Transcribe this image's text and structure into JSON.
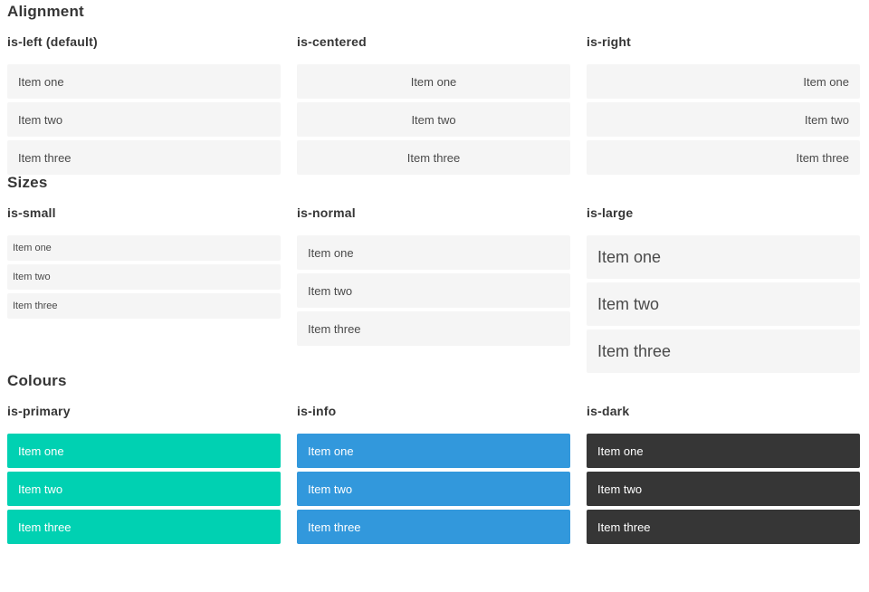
{
  "sections": [
    {
      "title": "Alignment",
      "groups": [
        {
          "label": "is-left (default)",
          "variant": "left",
          "items": [
            "Item one",
            "Item two",
            "Item three"
          ]
        },
        {
          "label": "is-centered",
          "variant": "centered",
          "items": [
            "Item one",
            "Item two",
            "Item three"
          ]
        },
        {
          "label": "is-right",
          "variant": "right",
          "items": [
            "Item one",
            "Item two",
            "Item three"
          ]
        }
      ]
    },
    {
      "title": "Sizes",
      "groups": [
        {
          "label": "is-small",
          "variant": "small",
          "items": [
            "Item one",
            "Item two",
            "Item three"
          ]
        },
        {
          "label": "is-normal",
          "variant": "normal",
          "items": [
            "Item one",
            "Item two",
            "Item three"
          ]
        },
        {
          "label": "is-large",
          "variant": "large",
          "items": [
            "Item one",
            "Item two",
            "Item three"
          ]
        }
      ]
    },
    {
      "title": "Colours",
      "groups": [
        {
          "label": "is-primary",
          "variant": "primary",
          "items": [
            "Item one",
            "Item two",
            "Item three"
          ]
        },
        {
          "label": "is-info",
          "variant": "info",
          "items": [
            "Item one",
            "Item two",
            "Item three"
          ]
        },
        {
          "label": "is-dark",
          "variant": "dark",
          "items": [
            "Item one",
            "Item two",
            "Item three"
          ]
        }
      ]
    }
  ],
  "colors": {
    "primary": "#00d1b2",
    "info": "#3298dc",
    "dark": "#363636",
    "item_background": "#f5f5f5",
    "item_text": "#4a4a4a",
    "heading_text": "#363636",
    "colored_item_text": "#ffffff"
  }
}
